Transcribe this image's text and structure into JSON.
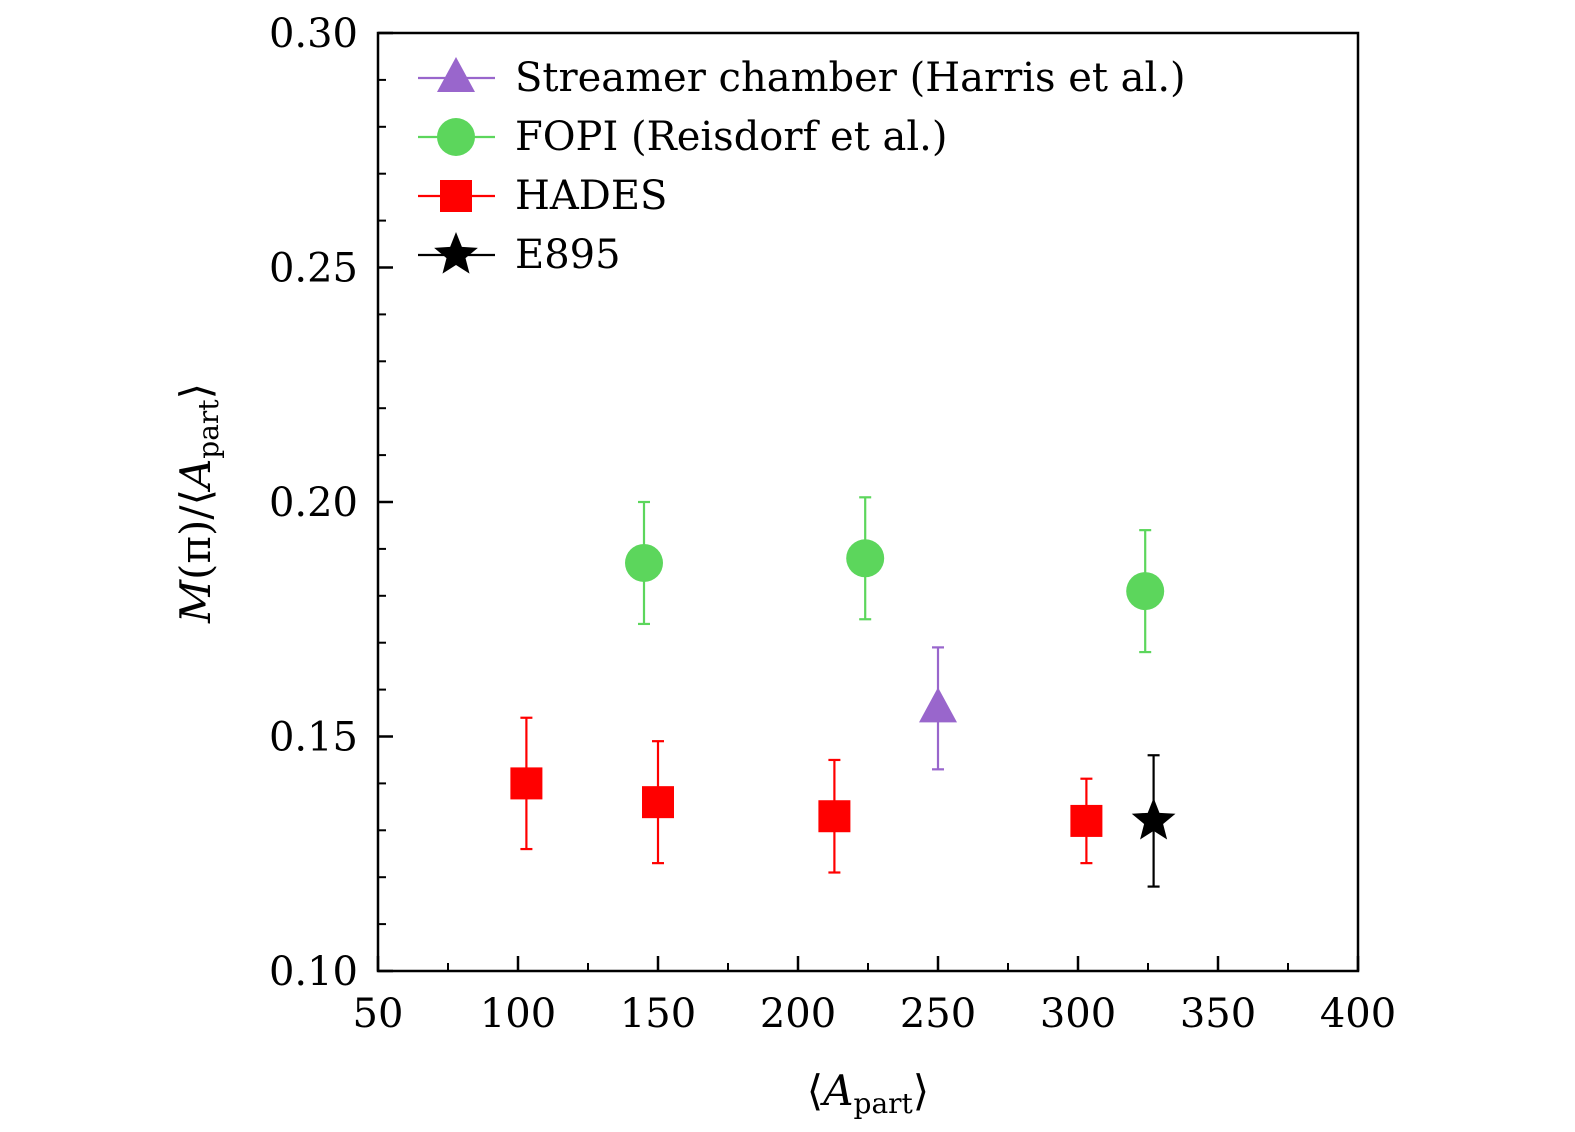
{
  "chart_data": {
    "type": "scatter",
    "xlabel_parts": {
      "open": "⟨",
      "var": "A",
      "sub": "part",
      "close": "⟩"
    },
    "ylabel_parts": {
      "var": "M",
      "mid": "(π)/⟨",
      "var2": "A",
      "sub": "part",
      "close": "⟩"
    },
    "xlim": [
      50,
      400
    ],
    "ylim": [
      0.1,
      0.3
    ],
    "x_ticks": [
      "50",
      "100",
      "150",
      "200",
      "250",
      "300",
      "350",
      "400"
    ],
    "y_ticks": [
      "0.10",
      "0.15",
      "0.20",
      "0.25",
      "0.30"
    ],
    "legend_position": "top-left",
    "series": [
      {
        "name": "Streamer chamber (Harris et al.)",
        "marker": "triangle",
        "color": "#9966cc",
        "points": [
          {
            "x": 250,
            "y": 0.156,
            "err": 0.013
          }
        ]
      },
      {
        "name": "FOPI (Reisdorf et al.)",
        "marker": "circle",
        "color": "#5cd65c",
        "points": [
          {
            "x": 145,
            "y": 0.187,
            "err": 0.013
          },
          {
            "x": 224,
            "y": 0.188,
            "err": 0.013
          },
          {
            "x": 324,
            "y": 0.181,
            "err": 0.013
          }
        ]
      },
      {
        "name": "HADES",
        "marker": "square",
        "color": "#ff0000",
        "points": [
          {
            "x": 103,
            "y": 0.14,
            "err": 0.014
          },
          {
            "x": 150,
            "y": 0.136,
            "err": 0.013
          },
          {
            "x": 213,
            "y": 0.133,
            "err": 0.012
          },
          {
            "x": 303,
            "y": 0.132,
            "err": 0.009
          }
        ]
      },
      {
        "name": "E895",
        "marker": "star",
        "color": "#000000",
        "points": [
          {
            "x": 327,
            "y": 0.132,
            "err": 0.014
          }
        ]
      }
    ]
  }
}
